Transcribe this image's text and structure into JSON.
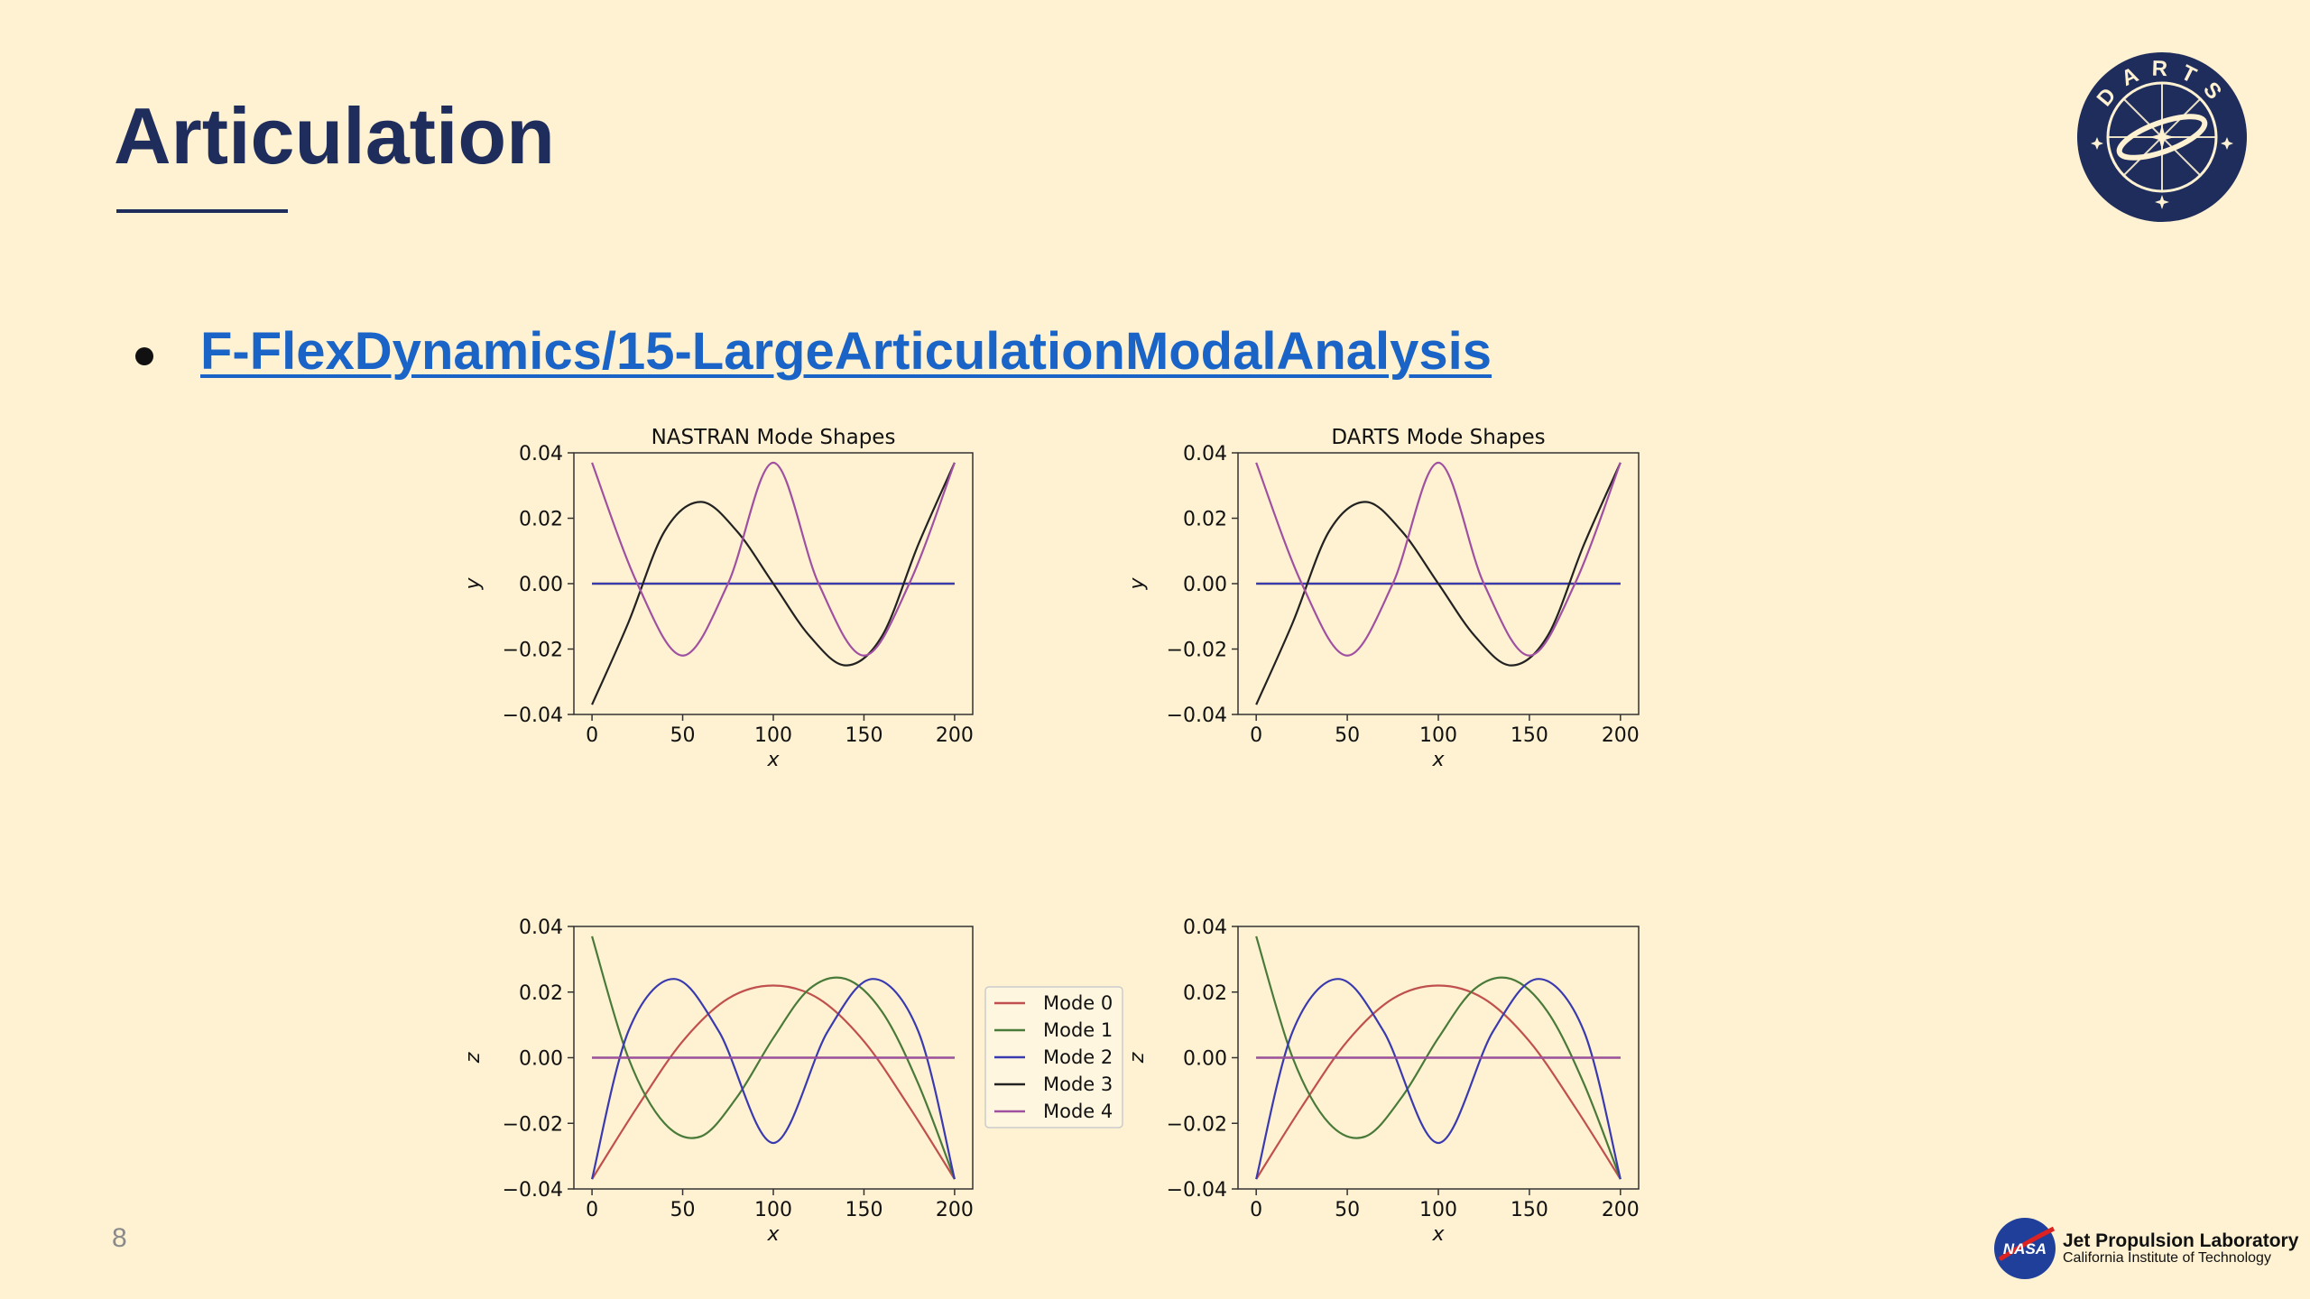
{
  "slide": {
    "title": "Articulation",
    "link_text": "F-FlexDynamics/15-LargeArticulationModalAnalysis",
    "page_number": "8"
  },
  "logos": {
    "darts_text": "DARTS",
    "nasa_text": "NASA",
    "jpl_name": "Jet Propulsion Laboratory",
    "jpl_sub": "California Institute of Technology"
  },
  "colors": {
    "background": "#fff2d2",
    "title": "#1f2d5c",
    "link": "#1a64c8",
    "mode0": "#c0504d",
    "mode1": "#4a7a3a",
    "mode2": "#3a3ab0",
    "mode3": "#222222",
    "mode4": "#a050a0"
  },
  "legend": {
    "placement": "right of bottom-left chart",
    "entries": [
      "Mode 0",
      "Mode 1",
      "Mode 2",
      "Mode 3",
      "Mode 4"
    ]
  },
  "chart_data": [
    {
      "type": "line",
      "title": "NASTRAN Mode Shapes",
      "xlabel": "x",
      "ylabel": "y",
      "xlim": [
        -10,
        210
      ],
      "ylim": [
        -0.04,
        0.04
      ],
      "xticks": [
        "0",
        "50",
        "100",
        "150",
        "200"
      ],
      "yticks": [
        "0.04",
        "0.02",
        "0.00",
        "−0.02",
        "−0.04"
      ],
      "series": [
        {
          "name": "Mode 0",
          "x": [
            0,
            200
          ],
          "y": [
            0.0,
            0.0
          ]
        },
        {
          "name": "Mode 1",
          "x": [
            0,
            200
          ],
          "y": [
            0.0,
            0.0
          ]
        },
        {
          "name": "Mode 2",
          "x": [
            0,
            200
          ],
          "y": [
            0.0,
            0.0
          ]
        },
        {
          "name": "Mode 3",
          "x": [
            0,
            20,
            40,
            60,
            80,
            100,
            120,
            140,
            160,
            180,
            200
          ],
          "y": [
            -0.037,
            -0.012,
            0.016,
            0.025,
            0.016,
            0.0,
            -0.016,
            -0.025,
            -0.016,
            0.012,
            0.037
          ]
        },
        {
          "name": "Mode 4",
          "x": [
            0,
            25,
            50,
            75,
            100,
            125,
            150,
            175,
            200
          ],
          "y": [
            0.037,
            0.0,
            -0.022,
            0.0,
            0.037,
            0.0,
            -0.022,
            0.0,
            0.037
          ]
        }
      ]
    },
    {
      "type": "line",
      "title": "DARTS Mode Shapes",
      "xlabel": "x",
      "ylabel": "y",
      "xlim": [
        -10,
        210
      ],
      "ylim": [
        -0.04,
        0.04
      ],
      "xticks": [
        "0",
        "50",
        "100",
        "150",
        "200"
      ],
      "yticks": [
        "0.04",
        "0.02",
        "0.00",
        "−0.02",
        "−0.04"
      ],
      "series": [
        {
          "name": "Mode 0",
          "x": [
            0,
            200
          ],
          "y": [
            0.0,
            0.0
          ]
        },
        {
          "name": "Mode 1",
          "x": [
            0,
            200
          ],
          "y": [
            0.0,
            0.0
          ]
        },
        {
          "name": "Mode 2",
          "x": [
            0,
            200
          ],
          "y": [
            0.0,
            0.0
          ]
        },
        {
          "name": "Mode 3",
          "x": [
            0,
            20,
            40,
            60,
            80,
            100,
            120,
            140,
            160,
            180,
            200
          ],
          "y": [
            -0.037,
            -0.012,
            0.016,
            0.025,
            0.016,
            0.0,
            -0.016,
            -0.025,
            -0.016,
            0.012,
            0.037
          ]
        },
        {
          "name": "Mode 4",
          "x": [
            0,
            25,
            50,
            75,
            100,
            125,
            150,
            175,
            200
          ],
          "y": [
            0.037,
            0.0,
            -0.022,
            0.0,
            0.037,
            0.0,
            -0.022,
            0.0,
            0.037
          ]
        }
      ]
    },
    {
      "type": "line",
      "title": "",
      "xlabel": "x",
      "ylabel": "z",
      "xlim": [
        -10,
        210
      ],
      "ylim": [
        -0.04,
        0.04
      ],
      "xticks": [
        "0",
        "50",
        "100",
        "150",
        "200"
      ],
      "yticks": [
        "0.04",
        "0.02",
        "0.00",
        "−0.02",
        "−0.04"
      ],
      "series": [
        {
          "name": "Mode 0",
          "x": [
            0,
            25,
            50,
            75,
            100,
            125,
            150,
            175,
            200
          ],
          "y": [
            -0.037,
            -0.015,
            0.005,
            0.018,
            0.022,
            0.018,
            0.005,
            -0.015,
            -0.037
          ]
        },
        {
          "name": "Mode 1",
          "x": [
            0,
            20,
            40,
            60,
            80,
            100,
            120,
            140,
            160,
            180,
            200
          ],
          "y": [
            0.037,
            0.0,
            -0.02,
            -0.024,
            -0.012,
            0.006,
            0.021,
            0.024,
            0.014,
            -0.008,
            -0.037
          ]
        },
        {
          "name": "Mode 2",
          "x": [
            0,
            20,
            45,
            70,
            100,
            130,
            155,
            180,
            200
          ],
          "y": [
            -0.037,
            0.008,
            0.024,
            0.008,
            -0.026,
            0.008,
            0.024,
            0.008,
            -0.037
          ]
        },
        {
          "name": "Mode 3",
          "x": [
            0,
            200
          ],
          "y": [
            0.0,
            0.0
          ]
        },
        {
          "name": "Mode 4",
          "x": [
            0,
            200
          ],
          "y": [
            0.0,
            0.0
          ]
        }
      ]
    },
    {
      "type": "line",
      "title": "",
      "xlabel": "x",
      "ylabel": "z",
      "xlim": [
        -10,
        210
      ],
      "ylim": [
        -0.04,
        0.04
      ],
      "xticks": [
        "0",
        "50",
        "100",
        "150",
        "200"
      ],
      "yticks": [
        "0.04",
        "0.02",
        "0.00",
        "−0.02",
        "−0.04"
      ],
      "series": [
        {
          "name": "Mode 0",
          "x": [
            0,
            25,
            50,
            75,
            100,
            125,
            150,
            175,
            200
          ],
          "y": [
            -0.037,
            -0.015,
            0.005,
            0.018,
            0.022,
            0.018,
            0.005,
            -0.015,
            -0.037
          ]
        },
        {
          "name": "Mode 1",
          "x": [
            0,
            20,
            40,
            60,
            80,
            100,
            120,
            140,
            160,
            180,
            200
          ],
          "y": [
            0.037,
            0.0,
            -0.02,
            -0.024,
            -0.012,
            0.006,
            0.021,
            0.024,
            0.014,
            -0.008,
            -0.037
          ]
        },
        {
          "name": "Mode 2",
          "x": [
            0,
            20,
            45,
            70,
            100,
            130,
            155,
            180,
            200
          ],
          "y": [
            -0.037,
            0.008,
            0.024,
            0.008,
            -0.026,
            0.008,
            0.024,
            0.008,
            -0.037
          ]
        },
        {
          "name": "Mode 3",
          "x": [
            0,
            200
          ],
          "y": [
            0.0,
            0.0
          ]
        },
        {
          "name": "Mode 4",
          "x": [
            0,
            200
          ],
          "y": [
            0.0,
            0.0
          ]
        }
      ]
    }
  ]
}
